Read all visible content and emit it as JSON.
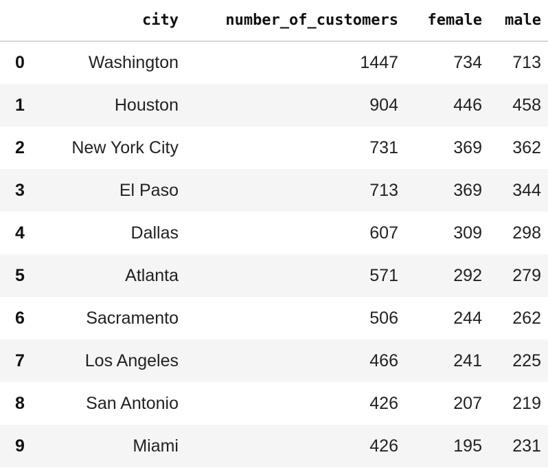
{
  "table": {
    "columns": [
      "",
      "city",
      "number_of_customers",
      "female",
      "male"
    ],
    "rows": [
      {
        "index": "0",
        "city": "Washington",
        "number_of_customers": "1447",
        "female": "734",
        "male": "713"
      },
      {
        "index": "1",
        "city": "Houston",
        "number_of_customers": "904",
        "female": "446",
        "male": "458"
      },
      {
        "index": "2",
        "city": "New York City",
        "number_of_customers": "731",
        "female": "369",
        "male": "362"
      },
      {
        "index": "3",
        "city": "El Paso",
        "number_of_customers": "713",
        "female": "369",
        "male": "344"
      },
      {
        "index": "4",
        "city": "Dallas",
        "number_of_customers": "607",
        "female": "309",
        "male": "298"
      },
      {
        "index": "5",
        "city": "Atlanta",
        "number_of_customers": "571",
        "female": "292",
        "male": "279"
      },
      {
        "index": "6",
        "city": "Sacramento",
        "number_of_customers": "506",
        "female": "244",
        "male": "262"
      },
      {
        "index": "7",
        "city": "Los Angeles",
        "number_of_customers": "466",
        "female": "241",
        "male": "225"
      },
      {
        "index": "8",
        "city": "San Antonio",
        "number_of_customers": "426",
        "female": "207",
        "male": "219"
      },
      {
        "index": "9",
        "city": "Miami",
        "number_of_customers": "426",
        "female": "195",
        "male": "231"
      }
    ]
  }
}
